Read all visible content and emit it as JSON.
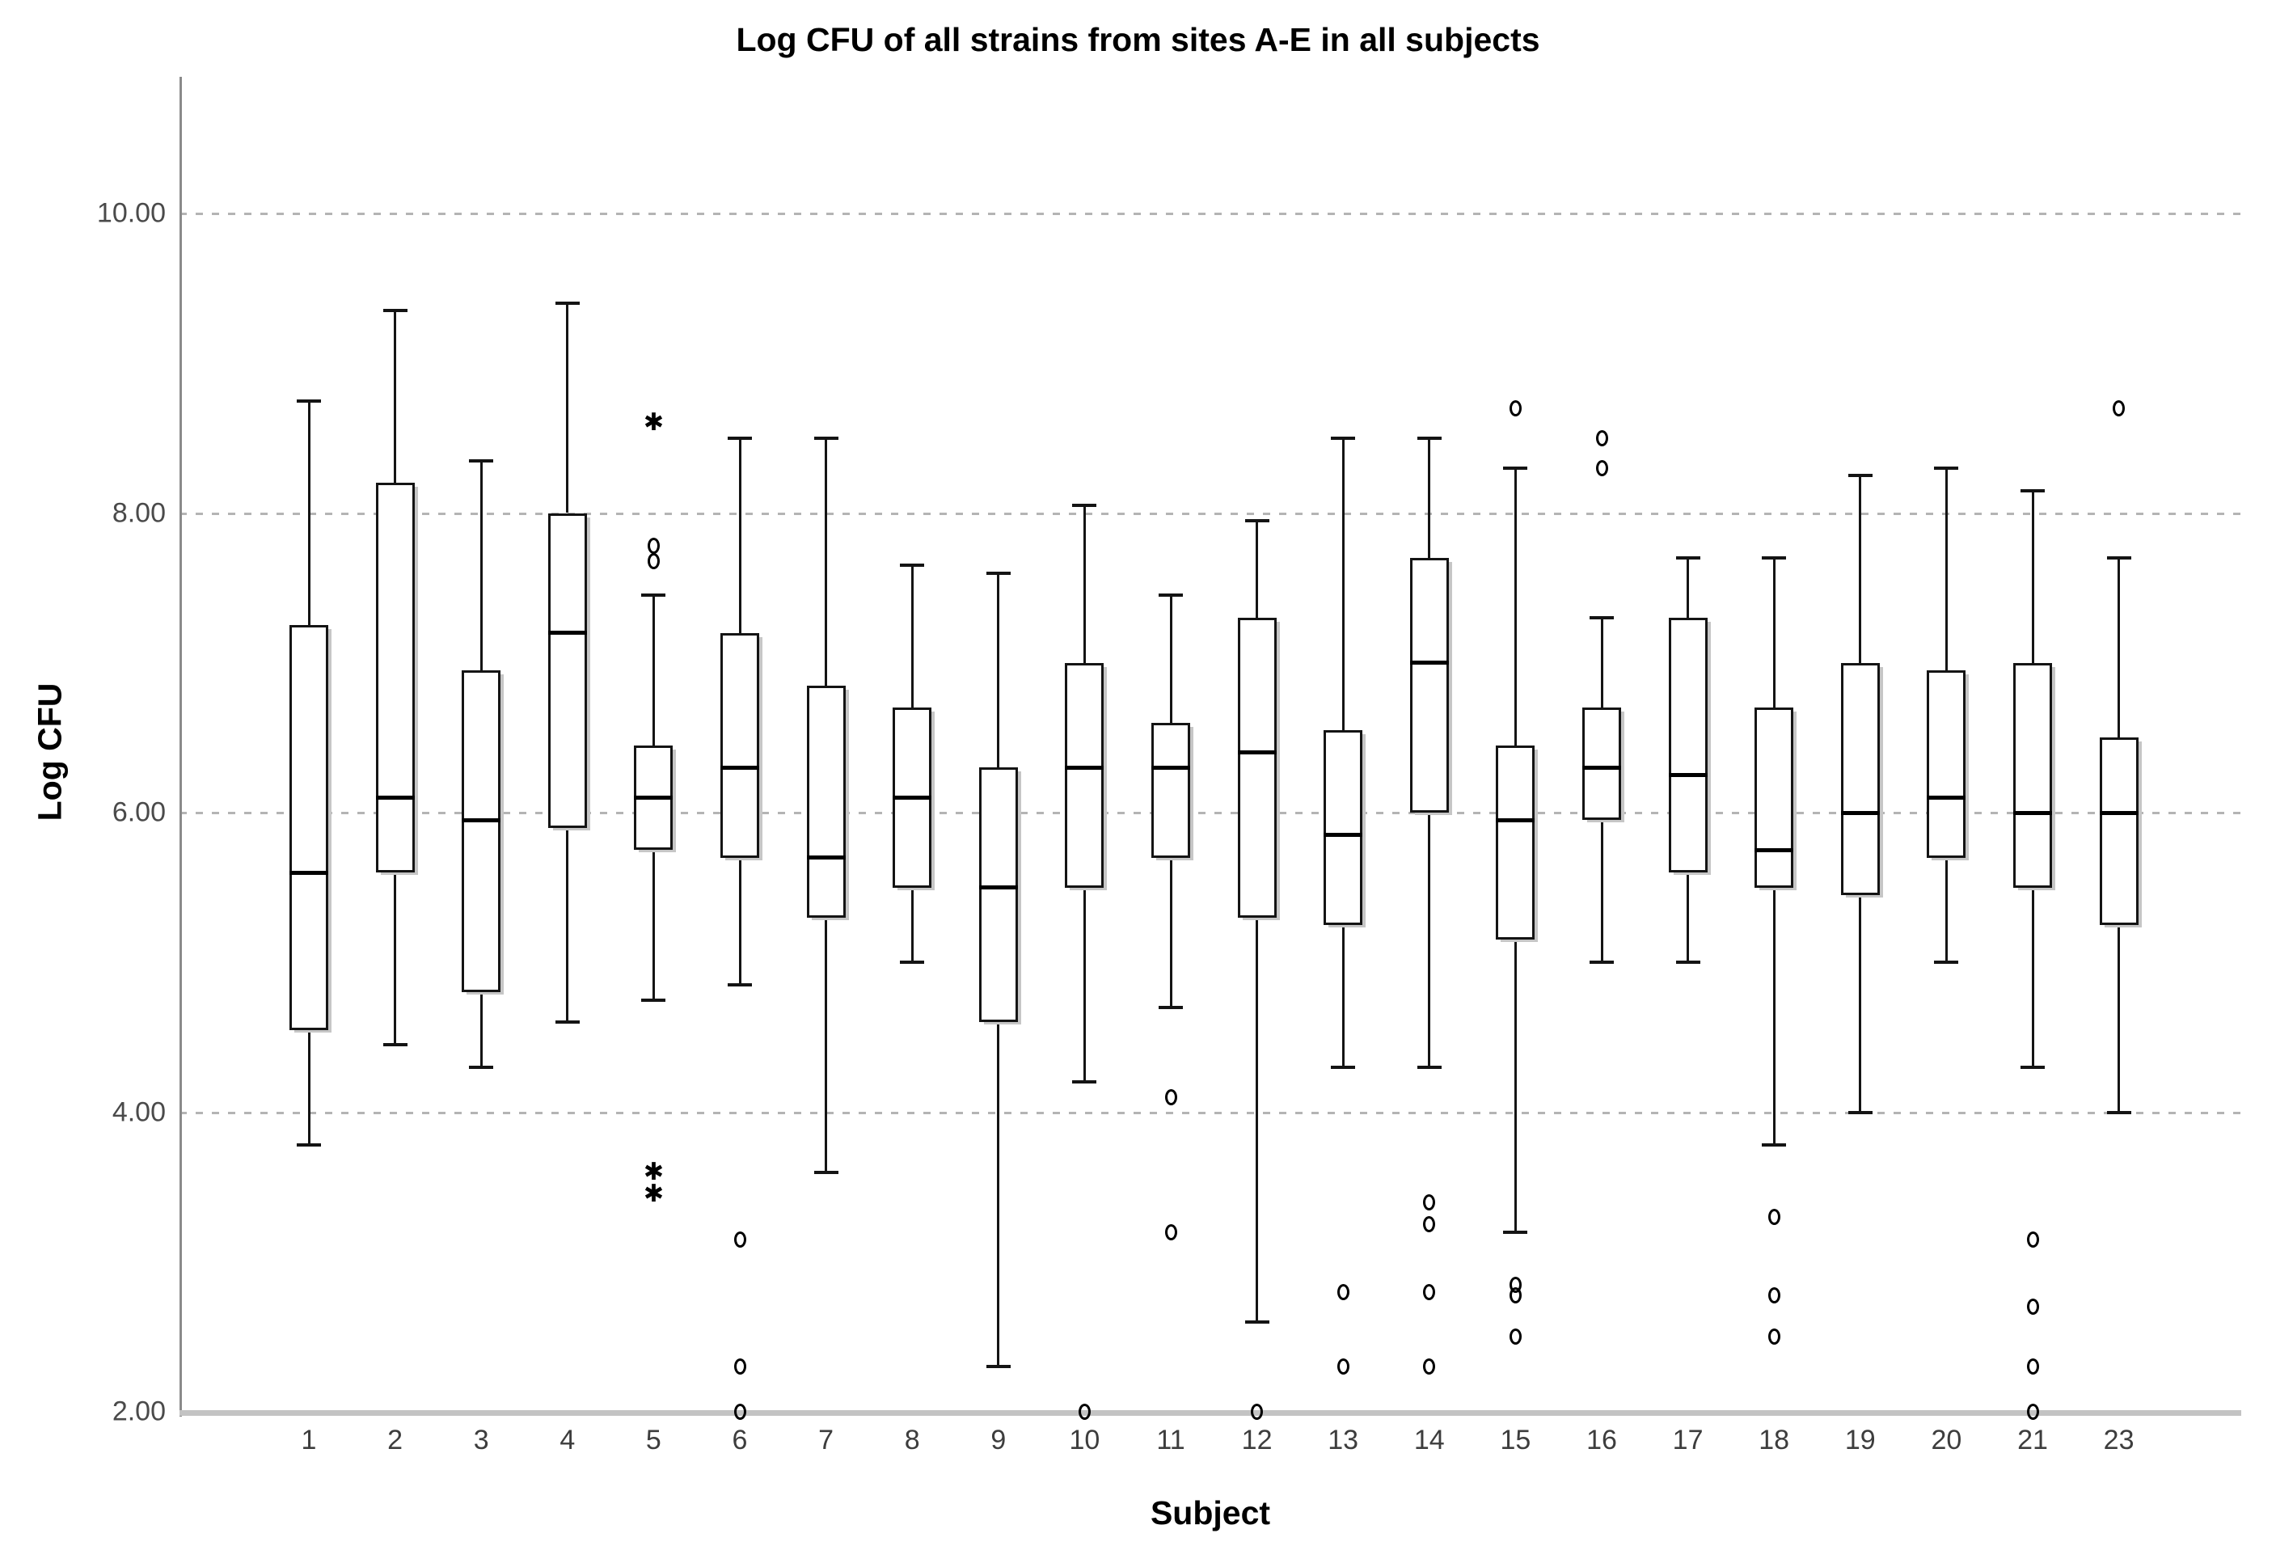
{
  "title": "Log CFU of all strains from sites A-E in all subjects",
  "x_axis": {
    "label": "Subject"
  },
  "y_axis": {
    "label": "Log CFU",
    "ticks": [
      {
        "label": "10.00",
        "value": 10
      },
      {
        "label": "8.00",
        "value": 8
      },
      {
        "label": "6.00",
        "value": 6
      },
      {
        "label": "4.00",
        "value": 4
      },
      {
        "label": "2.00",
        "value": 2
      }
    ]
  },
  "colors": {
    "background": "#ffffff",
    "box_stroke": "#141414",
    "box_fill": "#ffffff",
    "box_shadow": "#c6c6c6",
    "gridline": "#b4b4b4",
    "y_axis_line": "#8a8a8a",
    "x_axis_line": "#c3c3c3",
    "tick_text": "#3d3d3d",
    "title_text": "#000000"
  },
  "chart_data": {
    "type": "boxplot",
    "title": "Log CFU of all strains from sites A-E in all subjects",
    "xlabel": "Subject",
    "ylabel": "Log CFU",
    "ylim": [
      2.0,
      10.9
    ],
    "y_tick_values": [
      10,
      8,
      6,
      4,
      2
    ],
    "grid": "horizontal-dashed-at-4-6-8-10",
    "legend": "none",
    "outlier_glyphs": {
      "circle": "mild outlier (o)",
      "star": "extreme outlier (*)"
    },
    "categories": [
      "1",
      "2",
      "3",
      "4",
      "5",
      "6",
      "7",
      "8",
      "9",
      "10",
      "11",
      "12",
      "13",
      "14",
      "15",
      "16",
      "17",
      "18",
      "19",
      "20",
      "21",
      "23"
    ],
    "series": [
      {
        "subject": "1",
        "min": 3.78,
        "q1": 4.55,
        "median": 5.6,
        "q3": 7.25,
        "max": 8.75,
        "outliers": []
      },
      {
        "subject": "2",
        "min": 4.45,
        "q1": 5.6,
        "median": 6.1,
        "q3": 8.2,
        "max": 9.35,
        "outliers": []
      },
      {
        "subject": "3",
        "min": 4.3,
        "q1": 4.8,
        "median": 5.95,
        "q3": 6.95,
        "max": 8.35,
        "outliers": []
      },
      {
        "subject": "4",
        "min": 4.6,
        "q1": 5.9,
        "median": 7.2,
        "q3": 8.0,
        "max": 9.4,
        "outliers": []
      },
      {
        "subject": "5",
        "min": 4.75,
        "q1": 5.75,
        "median": 6.1,
        "q3": 6.45,
        "max": 7.45,
        "outliers": [
          {
            "value": 8.6,
            "type": "star"
          },
          {
            "value": 7.78,
            "type": "circle"
          },
          {
            "value": 7.68,
            "type": "circle"
          },
          {
            "value": 3.6,
            "type": "star"
          },
          {
            "value": 3.45,
            "type": "star"
          }
        ]
      },
      {
        "subject": "6",
        "min": 4.85,
        "q1": 5.7,
        "median": 6.3,
        "q3": 7.2,
        "max": 8.5,
        "outliers": [
          {
            "value": 3.15,
            "type": "circle"
          },
          {
            "value": 2.3,
            "type": "circle"
          },
          {
            "value": 2.0,
            "type": "circle"
          }
        ]
      },
      {
        "subject": "7",
        "min": 3.6,
        "q1": 5.3,
        "median": 5.7,
        "q3": 6.85,
        "max": 8.5,
        "outliers": []
      },
      {
        "subject": "8",
        "min": 5.0,
        "q1": 5.5,
        "median": 6.1,
        "q3": 6.7,
        "max": 7.65,
        "outliers": []
      },
      {
        "subject": "9",
        "min": 2.3,
        "q1": 4.6,
        "median": 5.5,
        "q3": 6.3,
        "max": 7.6,
        "outliers": []
      },
      {
        "subject": "10",
        "min": 4.2,
        "q1": 5.5,
        "median": 6.3,
        "q3": 7.0,
        "max": 8.05,
        "outliers": [
          {
            "value": 2.0,
            "type": "circle"
          }
        ]
      },
      {
        "subject": "11",
        "min": 4.7,
        "q1": 5.7,
        "median": 6.3,
        "q3": 6.6,
        "max": 7.45,
        "outliers": [
          {
            "value": 4.1,
            "type": "circle"
          },
          {
            "value": 3.2,
            "type": "circle"
          }
        ]
      },
      {
        "subject": "12",
        "min": 2.6,
        "q1": 5.3,
        "median": 6.4,
        "q3": 7.3,
        "max": 7.95,
        "outliers": [
          {
            "value": 2.0,
            "type": "circle"
          }
        ]
      },
      {
        "subject": "13",
        "min": 4.3,
        "q1": 5.25,
        "median": 5.85,
        "q3": 6.55,
        "max": 8.5,
        "outliers": [
          {
            "value": 2.8,
            "type": "circle"
          },
          {
            "value": 2.3,
            "type": "circle"
          }
        ]
      },
      {
        "subject": "14",
        "min": 4.3,
        "q1": 6.0,
        "median": 7.0,
        "q3": 7.7,
        "max": 8.5,
        "outliers": [
          {
            "value": 3.4,
            "type": "circle"
          },
          {
            "value": 3.25,
            "type": "circle"
          },
          {
            "value": 2.8,
            "type": "circle"
          },
          {
            "value": 2.3,
            "type": "circle"
          }
        ]
      },
      {
        "subject": "15",
        "min": 3.2,
        "q1": 5.15,
        "median": 5.95,
        "q3": 6.45,
        "max": 8.3,
        "outliers": [
          {
            "value": 8.7,
            "type": "circle"
          },
          {
            "value": 2.85,
            "type": "circle"
          },
          {
            "value": 2.78,
            "type": "circle"
          },
          {
            "value": 2.5,
            "type": "circle"
          }
        ]
      },
      {
        "subject": "16",
        "min": 5.0,
        "q1": 5.95,
        "median": 6.3,
        "q3": 6.7,
        "max": 7.3,
        "outliers": [
          {
            "value": 8.5,
            "type": "circle"
          },
          {
            "value": 8.3,
            "type": "circle"
          }
        ]
      },
      {
        "subject": "17",
        "min": 5.0,
        "q1": 5.6,
        "median": 6.25,
        "q3": 7.3,
        "max": 7.7,
        "outliers": []
      },
      {
        "subject": "18",
        "min": 3.78,
        "q1": 5.5,
        "median": 5.75,
        "q3": 6.7,
        "max": 7.7,
        "outliers": [
          {
            "value": 3.3,
            "type": "circle"
          },
          {
            "value": 2.78,
            "type": "circle"
          },
          {
            "value": 2.5,
            "type": "circle"
          }
        ]
      },
      {
        "subject": "19",
        "min": 4.0,
        "q1": 5.45,
        "median": 6.0,
        "q3": 7.0,
        "max": 8.25,
        "outliers": []
      },
      {
        "subject": "20",
        "min": 5.0,
        "q1": 5.7,
        "median": 6.1,
        "q3": 6.95,
        "max": 8.3,
        "outliers": []
      },
      {
        "subject": "21",
        "min": 4.3,
        "q1": 5.5,
        "median": 6.0,
        "q3": 7.0,
        "max": 8.15,
        "outliers": [
          {
            "value": 3.15,
            "type": "circle"
          },
          {
            "value": 2.7,
            "type": "circle"
          },
          {
            "value": 2.3,
            "type": "circle"
          },
          {
            "value": 2.0,
            "type": "circle"
          }
        ]
      },
      {
        "subject": "23",
        "min": 4.0,
        "q1": 5.25,
        "median": 6.0,
        "q3": 6.5,
        "max": 7.7,
        "outliers": [
          {
            "value": 8.7,
            "type": "circle"
          }
        ]
      }
    ]
  }
}
